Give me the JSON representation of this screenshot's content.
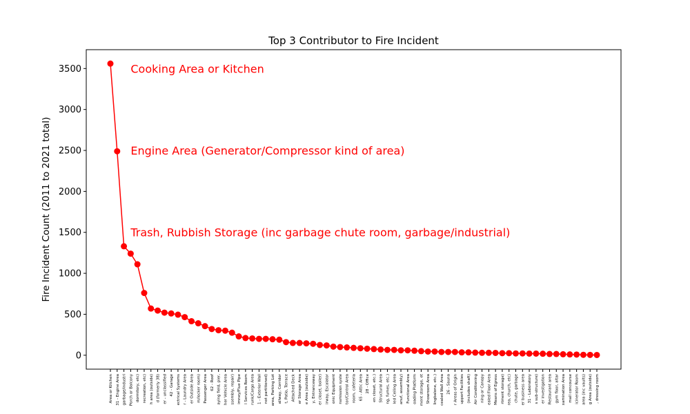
{
  "chart_data": {
    "type": "line",
    "title": "Top 3 Contributor to Fire Incident",
    "xlabel": "",
    "ylabel": "Fire Incident Count (2011 to 2021 total)",
    "ylim": [
      -170,
      3730
    ],
    "yticks": [
      0,
      500,
      1000,
      1500,
      2000,
      2500,
      3000,
      3500
    ],
    "grid": false,
    "marker": "circle",
    "color": "#ff0000",
    "categories": [
      "Area or Kitchen",
      "31 - Engine Area",
      "garbage/industri",
      "Porch or Balcony",
      "dormitory, etc)",
      "recreation, etc)",
      "h area (outside)",
      "d (formerly 38)",
      "er - unclassified",
      "42 - Garage",
      "ectrical Systems",
      "r - Laundry Area",
      "er Outside Area",
      "m/locker room)",
      "Passenger Area",
      "62 - Roof",
      "aying field, pier,",
      "her Vehicle Area",
      "ssembly, repair)",
      "imney/Flue Pipe",
      "l Services Room",
      "runk/Cargo Area",
      "1 - Exterior Wall",
      "not partitioned)",
      "area, Parking Lot",
      "allway, Corridor",
      "t, Patio, Terrace",
      "Attached Deck",
      "er Storage Area",
      "e Area (outside)",
      "y, Entranceway",
      "er closet, boiler)",
      "irway, Escalator",
      "onic Equipment",
      "nsmission syste",
      "tor/Control Area",
      "room, cafeteria",
      "65 - Attic Area",
      "28 - Office",
      "en closet, etc.)",
      "Structural Area",
      "ng, fumes, etc.)",
      "led Ceiling Area",
      "anuf, assembly)",
      "Functional Area",
      "oading Platform",
      "ment storage, et",
      "Showroom Area",
      "lingbalone, etc.)",
      "cealed Wall Area",
      "26 - Sauna",
      "r Areas of Origin",
      "upport Facilities",
      "(includes shaft)",
      "Air Conditioning",
      "ning or Canopy",
      "ealed Floor Area",
      "Means of Egress",
      "rtment storage)",
      "rea, church, etc)",
      "chute, garbage",
      "er business area",
      "31 - Laboratory",
      "s sub-structure)",
      "er investigation",
      "Restaurant area",
      "gym floor, altar",
      "xamination Area",
      "mall concourse",
      "icinerator Room",
      "area (inc vaults)",
      "g Area (outside)",
      ", dressing room"
    ],
    "values": [
      3560,
      2490,
      1330,
      1240,
      1110,
      760,
      570,
      545,
      520,
      510,
      495,
      465,
      415,
      390,
      355,
      320,
      305,
      300,
      275,
      230,
      210,
      205,
      200,
      200,
      195,
      190,
      160,
      150,
      150,
      145,
      140,
      125,
      120,
      105,
      100,
      95,
      90,
      85,
      80,
      75,
      70,
      65,
      65,
      60,
      60,
      55,
      50,
      45,
      45,
      40,
      40,
      40,
      35,
      35,
      32,
      30,
      30,
      28,
      25,
      25,
      22,
      22,
      20,
      20,
      18,
      15,
      15,
      12,
      10,
      8,
      5,
      4,
      3
    ],
    "annotations": [
      {
        "text": "Cooking Area or Kitchen",
        "x_index": 3,
        "y": 3500
      },
      {
        "text": "Engine Area (Generator/Compressor kind of area)",
        "x_index": 3,
        "y": 2500
      },
      {
        "text": "Trash, Rubbish Storage (inc garbage chute room, garbage/industrial)",
        "x_index": 3,
        "y": 1500
      }
    ]
  }
}
